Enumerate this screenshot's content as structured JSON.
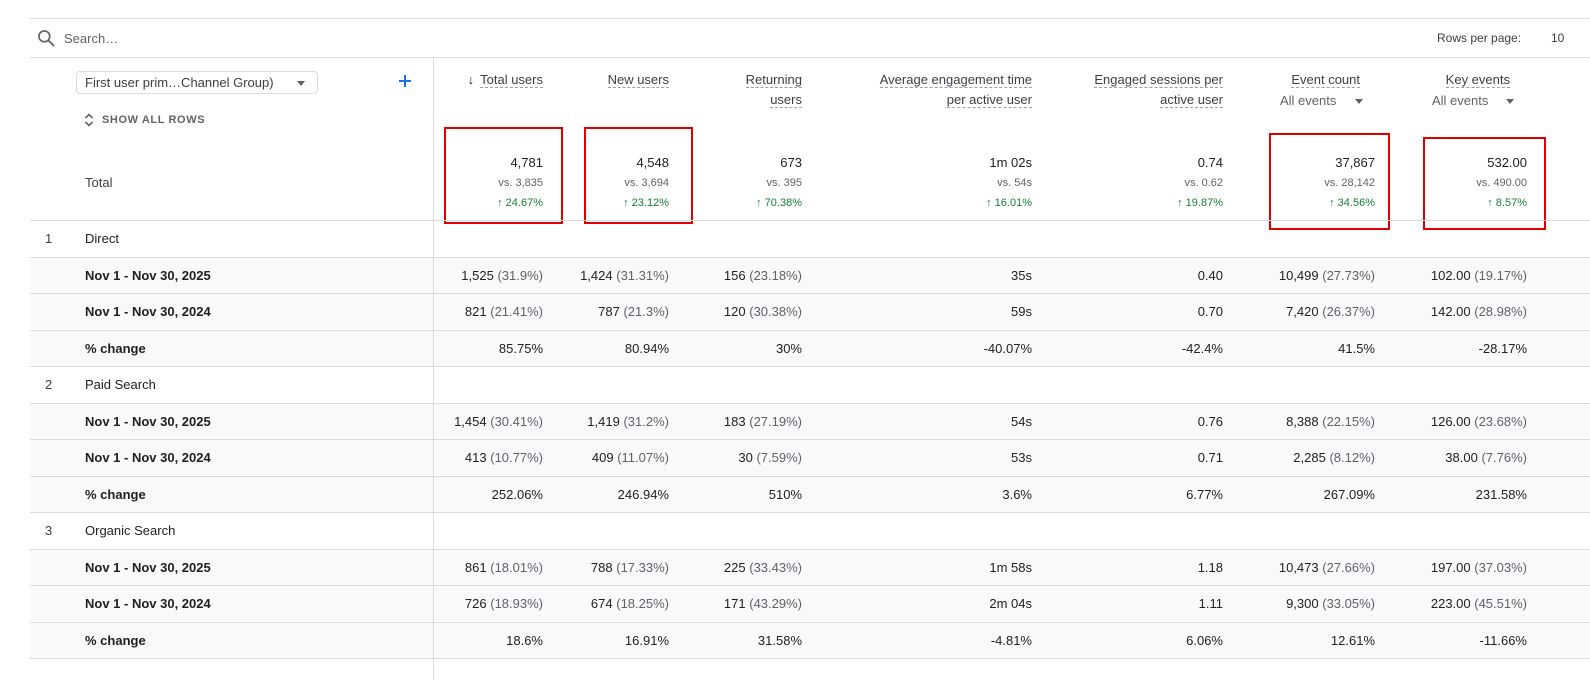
{
  "search": {
    "placeholder": "Search…"
  },
  "rows_per_page": {
    "label": "Rows per page:",
    "value": "10"
  },
  "dimension": {
    "label": "First user prim…Channel Group)",
    "add_icon": "plus-icon",
    "show_all_label": "SHOW ALL ROWS"
  },
  "columns": [
    {
      "line1": "Total users",
      "line2": "",
      "sorted": true
    },
    {
      "line1": "New users",
      "line2": ""
    },
    {
      "line1": "Returning",
      "line2": "users"
    },
    {
      "line1": "Average engagement time",
      "line2": "per active user"
    },
    {
      "line1": "Engaged sessions per",
      "line2": "active user"
    },
    {
      "line1": "Event count",
      "line2": "",
      "filter": "All events"
    },
    {
      "line1": "Key events",
      "line2": "",
      "filter": "All events"
    }
  ],
  "total": {
    "label": "Total",
    "cells": [
      {
        "value": "4,781",
        "vs": "vs. 3,835",
        "change": "↑ 24.67%"
      },
      {
        "value": "4,548",
        "vs": "vs. 3,694",
        "change": "↑ 23.12%"
      },
      {
        "value": "673",
        "vs": "vs. 395",
        "change": "↑ 70.38%"
      },
      {
        "value": "1m 02s",
        "vs": "vs. 54s",
        "change": "↑ 16.01%"
      },
      {
        "value": "0.74",
        "vs": "vs. 0.62",
        "change": "↑ 19.87%"
      },
      {
        "value": "37,867",
        "vs": "vs. 28,142",
        "change": "↑ 34.56%"
      },
      {
        "value": "532.00",
        "vs": "vs. 490.00",
        "change": "↑ 8.57%"
      }
    ]
  },
  "groups": [
    {
      "num": "1",
      "name": "Direct",
      "rows": [
        {
          "label": "Nov 1 - Nov 30, 2025",
          "cells": [
            [
              "1,525",
              "(31.9%)"
            ],
            [
              "1,424",
              "(31.31%)"
            ],
            [
              "156",
              "(23.18%)"
            ],
            [
              "35s",
              ""
            ],
            [
              "0.40",
              ""
            ],
            [
              "10,499",
              "(27.73%)"
            ],
            [
              "102.00",
              "(19.17%)"
            ]
          ]
        },
        {
          "label": "Nov 1 - Nov 30, 2024",
          "cells": [
            [
              "821",
              "(21.41%)"
            ],
            [
              "787",
              "(21.3%)"
            ],
            [
              "120",
              "(30.38%)"
            ],
            [
              "59s",
              ""
            ],
            [
              "0.70",
              ""
            ],
            [
              "7,420",
              "(26.37%)"
            ],
            [
              "142.00",
              "(28.98%)"
            ]
          ]
        },
        {
          "label": "% change",
          "cells": [
            [
              "85.75%",
              ""
            ],
            [
              "80.94%",
              ""
            ],
            [
              "30%",
              ""
            ],
            [
              "-40.07%",
              ""
            ],
            [
              "-42.4%",
              ""
            ],
            [
              "41.5%",
              ""
            ],
            [
              "-28.17%",
              ""
            ]
          ]
        }
      ]
    },
    {
      "num": "2",
      "name": "Paid Search",
      "rows": [
        {
          "label": "Nov 1 - Nov 30, 2025",
          "cells": [
            [
              "1,454",
              "(30.41%)"
            ],
            [
              "1,419",
              "(31.2%)"
            ],
            [
              "183",
              "(27.19%)"
            ],
            [
              "54s",
              ""
            ],
            [
              "0.76",
              ""
            ],
            [
              "8,388",
              "(22.15%)"
            ],
            [
              "126.00",
              "(23.68%)"
            ]
          ]
        },
        {
          "label": "Nov 1 - Nov 30, 2024",
          "cells": [
            [
              "413",
              "(10.77%)"
            ],
            [
              "409",
              "(11.07%)"
            ],
            [
              "30",
              "(7.59%)"
            ],
            [
              "53s",
              ""
            ],
            [
              "0.71",
              ""
            ],
            [
              "2,285",
              "(8.12%)"
            ],
            [
              "38.00",
              "(7.76%)"
            ]
          ]
        },
        {
          "label": "% change",
          "cells": [
            [
              "252.06%",
              ""
            ],
            [
              "246.94%",
              ""
            ],
            [
              "510%",
              ""
            ],
            [
              "3.6%",
              ""
            ],
            [
              "6.77%",
              ""
            ],
            [
              "267.09%",
              ""
            ],
            [
              "231.58%",
              ""
            ]
          ]
        }
      ]
    },
    {
      "num": "3",
      "name": "Organic Search",
      "rows": [
        {
          "label": "Nov 1 - Nov 30, 2025",
          "cells": [
            [
              "861",
              "(18.01%)"
            ],
            [
              "788",
              "(17.33%)"
            ],
            [
              "225",
              "(33.43%)"
            ],
            [
              "1m 58s",
              ""
            ],
            [
              "1.18",
              ""
            ],
            [
              "10,473",
              "(27.66%)"
            ],
            [
              "197.00",
              "(37.03%)"
            ]
          ]
        },
        {
          "label": "Nov 1 - Nov 30, 2024",
          "cells": [
            [
              "726",
              "(18.93%)"
            ],
            [
              "674",
              "(18.25%)"
            ],
            [
              "171",
              "(43.29%)"
            ],
            [
              "2m 04s",
              ""
            ],
            [
              "1.11",
              ""
            ],
            [
              "9,300",
              "(33.05%)"
            ],
            [
              "223.00",
              "(45.51%)"
            ]
          ]
        },
        {
          "label": "% change",
          "cells": [
            [
              "18.6%",
              ""
            ],
            [
              "16.91%",
              ""
            ],
            [
              "31.58%",
              ""
            ],
            [
              "-4.81%",
              ""
            ],
            [
              "6.06%",
              ""
            ],
            [
              "12.61%",
              ""
            ],
            [
              "-11.66%",
              ""
            ]
          ]
        }
      ]
    }
  ],
  "highlight_color": "#e00000",
  "positive_color": "#188038"
}
